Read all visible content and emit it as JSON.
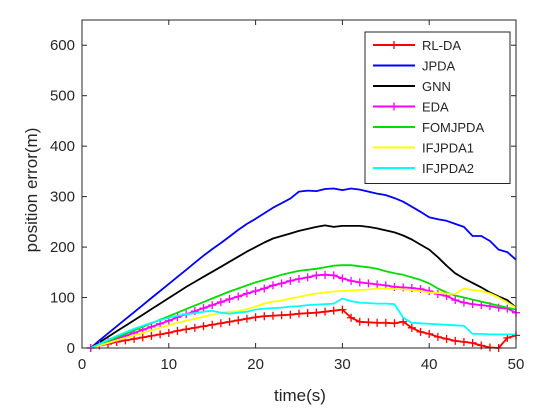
{
  "chart_data": {
    "type": "line",
    "xlabel": "time(s)",
    "ylabel": "position error(m)",
    "xlim": [
      0,
      50
    ],
    "ylim": [
      0,
      650
    ],
    "xticks": [
      0,
      10,
      20,
      30,
      40,
      50
    ],
    "yticks": [
      0,
      100,
      200,
      300,
      400,
      500,
      600
    ],
    "grid": false,
    "legend_position": "top-right",
    "series": [
      {
        "name": "RL-DA",
        "color": "#ff0000",
        "marker": "plus",
        "x": [
          1,
          2,
          3,
          4,
          5,
          6,
          7,
          8,
          9,
          10,
          11,
          12,
          13,
          14,
          15,
          16,
          17,
          18,
          19,
          20,
          21,
          22,
          23,
          24,
          25,
          26,
          27,
          28,
          29,
          30,
          31,
          32,
          33,
          34,
          35,
          36,
          37,
          38,
          39,
          40,
          41,
          42,
          43,
          44,
          45,
          46,
          47,
          48,
          49,
          50
        ],
        "y": [
          0,
          5,
          8,
          12,
          15,
          18,
          21,
          24,
          27,
          30,
          34,
          37,
          40,
          43,
          46,
          49,
          52,
          55,
          58,
          61,
          63,
          64,
          65,
          66,
          68,
          69,
          70,
          72,
          74,
          76,
          60,
          52,
          51,
          50,
          50,
          49,
          52,
          40,
          32,
          28,
          22,
          18,
          14,
          12,
          10,
          5,
          1,
          0,
          20,
          25
        ]
      },
      {
        "name": "JPDA",
        "color": "#0000ff",
        "marker": "none",
        "x": [
          1,
          2,
          3,
          4,
          5,
          6,
          7,
          8,
          9,
          10,
          11,
          12,
          13,
          14,
          15,
          16,
          17,
          18,
          19,
          20,
          21,
          22,
          23,
          24,
          25,
          26,
          27,
          28,
          29,
          30,
          31,
          32,
          33,
          34,
          35,
          36,
          37,
          38,
          39,
          40,
          41,
          42,
          43,
          44,
          45,
          46,
          47,
          48,
          49,
          50
        ],
        "y": [
          0,
          15,
          29,
          43,
          57,
          71,
          85,
          99,
          113,
          127,
          141,
          155,
          169,
          183,
          196,
          208,
          221,
          234,
          246,
          256,
          267,
          278,
          287,
          296,
          310,
          312,
          311,
          315,
          316,
          313,
          316,
          314,
          310,
          306,
          303,
          297,
          290,
          280,
          270,
          259,
          255,
          252,
          246,
          240,
          222,
          222,
          212,
          195,
          190,
          175
        ]
      },
      {
        "name": "GNN",
        "color": "#000000",
        "marker": "none",
        "x": [
          1,
          2,
          3,
          4,
          5,
          6,
          7,
          8,
          9,
          10,
          11,
          12,
          13,
          14,
          15,
          16,
          17,
          18,
          19,
          20,
          21,
          22,
          23,
          24,
          25,
          26,
          27,
          28,
          29,
          30,
          31,
          32,
          33,
          34,
          35,
          36,
          37,
          38,
          39,
          40,
          41,
          42,
          43,
          44,
          45,
          46,
          47,
          48,
          49,
          50
        ],
        "y": [
          0,
          11,
          22,
          33,
          44,
          55,
          66,
          77,
          88,
          99,
          110,
          121,
          131,
          141,
          151,
          161,
          171,
          181,
          191,
          200,
          209,
          217,
          222,
          227,
          232,
          236,
          240,
          243,
          240,
          242,
          242,
          242,
          240,
          237,
          233,
          229,
          223,
          215,
          205,
          195,
          180,
          163,
          148,
          138,
          129,
          120,
          110,
          102,
          95,
          80
        ]
      },
      {
        "name": "EDA",
        "color": "#ff00ff",
        "marker": "plus",
        "x": [
          1,
          2,
          3,
          4,
          5,
          6,
          7,
          8,
          9,
          10,
          11,
          12,
          13,
          14,
          15,
          16,
          17,
          18,
          19,
          20,
          21,
          22,
          23,
          24,
          25,
          26,
          27,
          28,
          29,
          30,
          31,
          32,
          33,
          34,
          35,
          36,
          37,
          38,
          39,
          40,
          41,
          42,
          43,
          44,
          45,
          46,
          47,
          48,
          49,
          50
        ],
        "y": [
          0,
          6,
          12,
          18,
          24,
          30,
          36,
          42,
          48,
          54,
          61,
          67,
          73,
          79,
          85,
          91,
          97,
          102,
          108,
          113,
          118,
          124,
          128,
          133,
          137,
          140,
          144,
          145,
          144,
          138,
          133,
          130,
          128,
          126,
          124,
          121,
          120,
          119,
          117,
          113,
          107,
          103,
          95,
          90,
          87,
          85,
          83,
          80,
          78,
          70
        ]
      },
      {
        "name": "FOMJPDA",
        "color": "#00dd00",
        "marker": "none",
        "x": [
          1,
          2,
          3,
          4,
          5,
          6,
          7,
          8,
          9,
          10,
          11,
          12,
          13,
          14,
          15,
          16,
          17,
          18,
          19,
          20,
          21,
          22,
          23,
          24,
          25,
          26,
          27,
          28,
          29,
          30,
          31,
          32,
          33,
          34,
          35,
          36,
          37,
          38,
          39,
          40,
          41,
          42,
          43,
          44,
          45,
          46,
          47,
          48,
          49,
          50
        ],
        "y": [
          0,
          7,
          14,
          21,
          28,
          35,
          42,
          49,
          56,
          63,
          70,
          77,
          84,
          91,
          98,
          105,
          112,
          118,
          124,
          130,
          135,
          140,
          145,
          149,
          153,
          155,
          157,
          160,
          163,
          164,
          164,
          162,
          160,
          157,
          152,
          148,
          145,
          140,
          135,
          128,
          118,
          110,
          104,
          100,
          96,
          92,
          88,
          84,
          80,
          76
        ]
      },
      {
        "name": "IFJPDA1",
        "color": "#ffff00",
        "marker": "none",
        "x": [
          1,
          2,
          3,
          4,
          5,
          6,
          7,
          8,
          9,
          10,
          11,
          12,
          13,
          14,
          15,
          16,
          17,
          18,
          19,
          20,
          21,
          22,
          23,
          24,
          25,
          26,
          27,
          28,
          29,
          30,
          31,
          32,
          33,
          34,
          35,
          36,
          37,
          38,
          39,
          40,
          41,
          42,
          43,
          44,
          45,
          46,
          47,
          48,
          49,
          50
        ],
        "y": [
          0,
          5,
          10,
          15,
          20,
          25,
          30,
          35,
          40,
          45,
          50,
          54,
          58,
          62,
          66,
          70,
          72,
          73,
          77,
          82,
          88,
          92,
          94,
          98,
          101,
          105,
          108,
          110,
          112,
          113,
          114,
          115,
          116,
          118,
          118,
          117,
          116,
          115,
          113,
          110,
          109,
          108,
          107,
          118,
          115,
          113,
          108,
          100,
          90,
          80
        ]
      },
      {
        "name": "IFJPDA2",
        "color": "#00ffff",
        "marker": "none",
        "x": [
          1,
          2,
          3,
          4,
          5,
          6,
          7,
          8,
          9,
          10,
          11,
          12,
          13,
          14,
          15,
          16,
          17,
          18,
          19,
          20,
          21,
          22,
          23,
          24,
          25,
          26,
          27,
          28,
          29,
          30,
          31,
          32,
          33,
          34,
          35,
          36,
          37,
          38,
          39,
          40,
          41,
          42,
          43,
          44,
          45,
          46,
          47,
          48,
          49,
          50
        ],
        "y": [
          0,
          8,
          16,
          24,
          31,
          38,
          44,
          50,
          55,
          60,
          64,
          67,
          69,
          72,
          74,
          70,
          68,
          70,
          72,
          76,
          78,
          79,
          80,
          82,
          83,
          85,
          86,
          87,
          88,
          98,
          93,
          90,
          89,
          88,
          88,
          87,
          60,
          50,
          49,
          48,
          47,
          46,
          45,
          44,
          28,
          28,
          27,
          27,
          27,
          27
        ]
      }
    ]
  }
}
